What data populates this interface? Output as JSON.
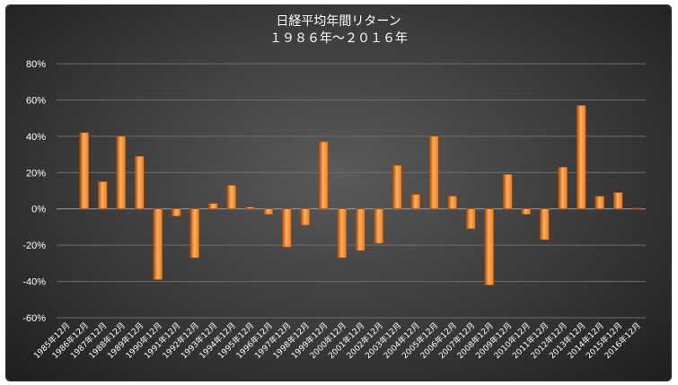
{
  "chart_data": {
    "type": "bar",
    "title": "日経平均年間リターン",
    "subtitle": "１９８６年〜２０１６年",
    "xlabel": "",
    "ylabel": "",
    "ylim": [
      -0.6,
      0.8
    ],
    "yticks": [
      0.8,
      0.6,
      0.4,
      0.2,
      0,
      -0.2,
      -0.4,
      -0.6
    ],
    "ytick_labels": [
      "80%",
      "60%",
      "40%",
      "20%",
      "0%",
      "-20%",
      "-40%",
      "-60%"
    ],
    "grid": true,
    "legend": "none",
    "bar_color": "#f07a1a",
    "bar_highlight": "#ffb060",
    "bar_shadow": "#a84a08",
    "categories": [
      "1985年12月",
      "1986年12月",
      "1987年12月",
      "1988年12月",
      "1989年12月",
      "1990年12月",
      "1991年12月",
      "1992年12月",
      "1993年12月",
      "1994年12月",
      "1995年12月",
      "1996年12月",
      "1997年12月",
      "1998年12月",
      "1999年12月",
      "2000年12月",
      "2001年12月",
      "2002年12月",
      "2003年12月",
      "2004年12月",
      "2005年12月",
      "2006年12月",
      "2007年12月",
      "2008年12月",
      "2009年12月",
      "2010年12月",
      "2011年12月",
      "2012年12月",
      "2013年12月",
      "2014年12月",
      "2015年12月",
      "2016年12月"
    ],
    "values": [
      null,
      0.42,
      0.15,
      0.4,
      0.29,
      -0.39,
      -0.04,
      -0.27,
      0.03,
      0.13,
      0.01,
      -0.03,
      -0.21,
      -0.09,
      0.37,
      -0.27,
      -0.23,
      -0.19,
      0.24,
      0.08,
      0.4,
      0.07,
      -0.11,
      -0.42,
      0.19,
      -0.03,
      -0.17,
      0.23,
      0.57,
      0.07,
      0.09,
      0.004
    ]
  }
}
